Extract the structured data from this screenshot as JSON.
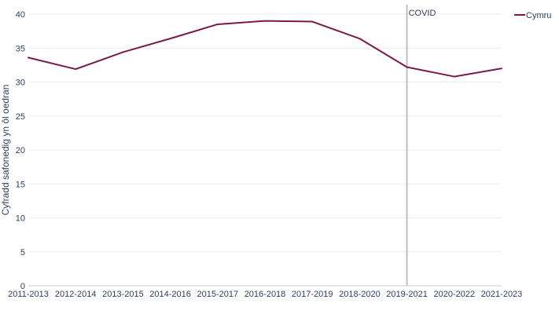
{
  "chart_data": {
    "type": "line",
    "title": "",
    "xlabel": "",
    "ylabel": "Cyfradd safonedig yn ôl oedran",
    "categories": [
      "2011-2013",
      "2012-2014",
      "2013-2015",
      "2014-2016",
      "2015-2017",
      "2016-2018",
      "2017-2019",
      "2018-2020",
      "2019-2021",
      "2020-2022",
      "2021-2023"
    ],
    "series": [
      {
        "name": "Cymru",
        "color": "#7a1a4a",
        "values": [
          33.6,
          31.9,
          34.4,
          36.4,
          38.5,
          39.0,
          38.9,
          36.4,
          32.2,
          30.8,
          32.0
        ]
      }
    ],
    "ylim": [
      0,
      40
    ],
    "yticks": [
      0,
      5,
      10,
      15,
      20,
      25,
      30,
      35,
      40
    ],
    "grid": true,
    "legend_position": "top-right",
    "annotations": [
      {
        "type": "vertical-line",
        "at_category": "2019-2021",
        "label": "COVID",
        "color": "#bfbfbf"
      }
    ]
  }
}
